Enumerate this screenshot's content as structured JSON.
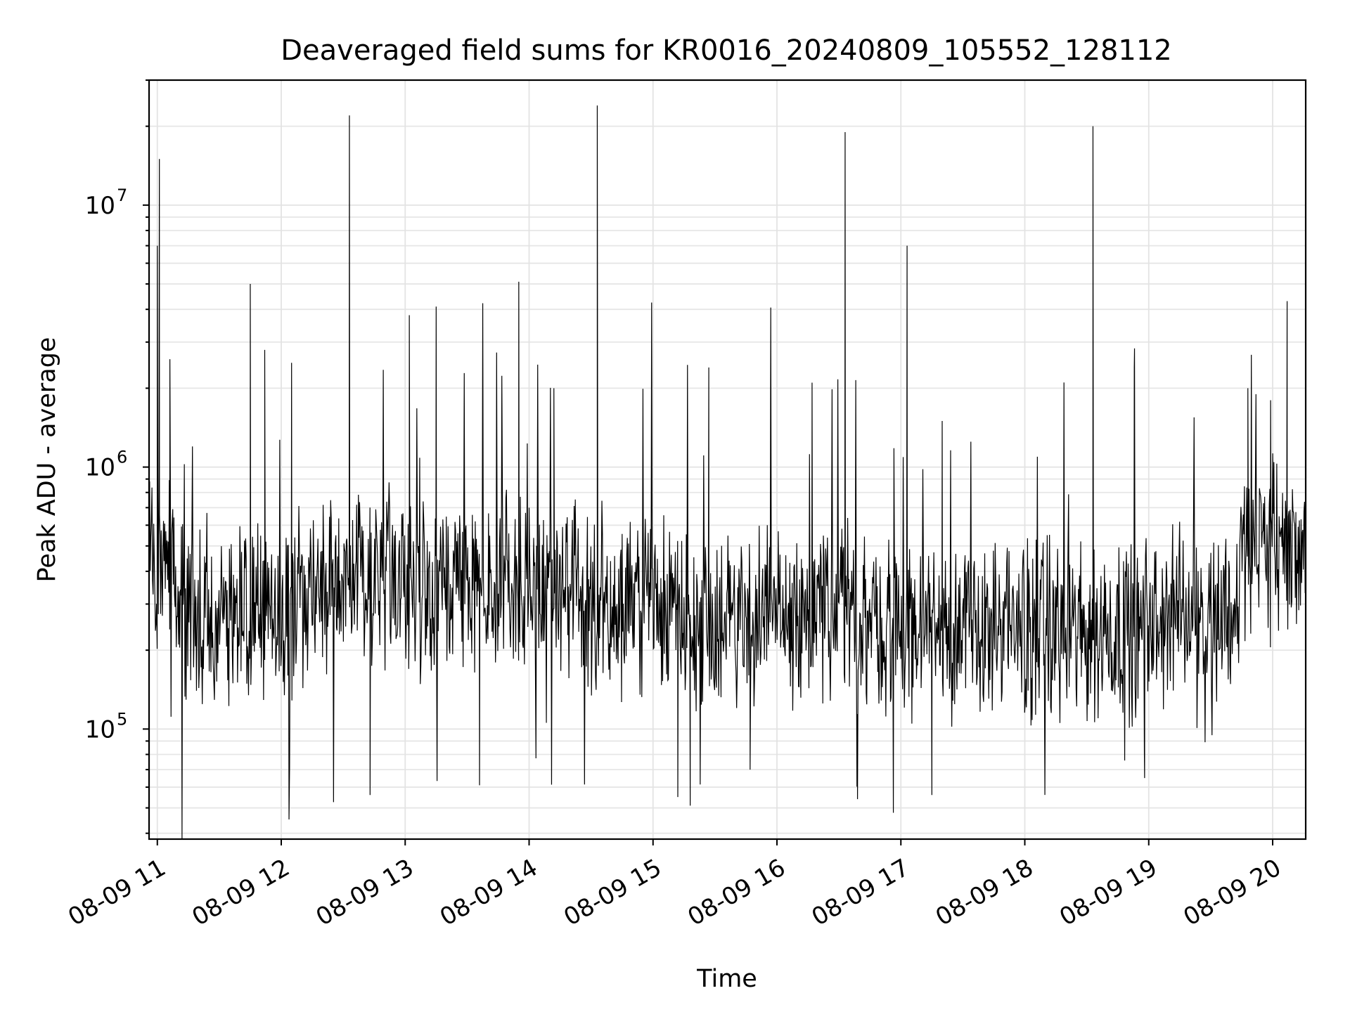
{
  "chart_data": {
    "type": "line",
    "title": "Deaveraged field sums for KR0016_20240809_105552_128112",
    "xlabel": "Time",
    "ylabel": "Peak ADU - average",
    "yscale": "log",
    "ylim": [
      38000,
      30000000
    ],
    "xlim": [
      "2024-08-09 10:56",
      "2024-08-09 20:16"
    ],
    "grid": true,
    "x_ticks": [
      {
        "value": "2024-08-09 11:00",
        "label": "08-09 11"
      },
      {
        "value": "2024-08-09 12:00",
        "label": "08-09 12"
      },
      {
        "value": "2024-08-09 13:00",
        "label": "08-09 13"
      },
      {
        "value": "2024-08-09 14:00",
        "label": "08-09 14"
      },
      {
        "value": "2024-08-09 15:00",
        "label": "08-09 15"
      },
      {
        "value": "2024-08-09 16:00",
        "label": "08-09 16"
      },
      {
        "value": "2024-08-09 17:00",
        "label": "08-09 17"
      },
      {
        "value": "2024-08-09 18:00",
        "label": "08-09 18"
      },
      {
        "value": "2024-08-09 19:00",
        "label": "08-09 19"
      },
      {
        "value": "2024-08-09 20:00",
        "label": "08-09 20"
      }
    ],
    "y_ticks": [
      {
        "value": 100000,
        "base": "10",
        "exp": "5"
      },
      {
        "value": 1000000,
        "base": "10",
        "exp": "6"
      },
      {
        "value": 10000000,
        "base": "10",
        "exp": "7"
      }
    ],
    "series": [
      {
        "color": "#000000",
        "points": [
          [
            "2024-08-09 10:56",
            600000
          ],
          [
            "2024-08-09 11:00",
            7000000
          ],
          [
            "2024-08-09 11:01",
            15000000
          ],
          [
            "2024-08-09 11:06",
            240000
          ],
          [
            "2024-08-09 11:45",
            5000000
          ],
          [
            "2024-08-09 11:52",
            2800000
          ],
          [
            "2024-08-09 12:05",
            2500000
          ],
          [
            "2024-08-09 12:33",
            22000000
          ],
          [
            "2024-08-09 12:43",
            56000
          ],
          [
            "2024-08-09 13:02",
            3800000
          ],
          [
            "2024-08-09 13:15",
            4100000
          ],
          [
            "2024-08-09 13:36",
            61000
          ],
          [
            "2024-08-09 13:55",
            5100000
          ],
          [
            "2024-08-09 14:00",
            700000
          ],
          [
            "2024-08-09 14:12",
            2000000
          ],
          [
            "2024-08-09 14:33",
            24000000
          ],
          [
            "2024-08-09 15:12",
            55000
          ],
          [
            "2024-08-09 15:18",
            51000
          ],
          [
            "2024-08-09 15:27",
            2400000
          ],
          [
            "2024-08-09 15:47",
            70000
          ],
          [
            "2024-08-09 16:17",
            2100000
          ],
          [
            "2024-08-09 16:33",
            19000000
          ],
          [
            "2024-08-09 16:39",
            54000
          ],
          [
            "2024-08-09 17:03",
            7000000
          ],
          [
            "2024-08-09 17:15",
            56000
          ],
          [
            "2024-08-09 17:20",
            1500000
          ],
          [
            "2024-08-09 18:33",
            20000000
          ],
          [
            "2024-08-09 18:53",
            2400000
          ],
          [
            "2024-08-09 18:58",
            65000
          ],
          [
            "2024-08-09 19:48",
            2000000
          ],
          [
            "2024-08-09 19:59",
            1800000
          ],
          [
            "2024-08-09 20:07",
            4300000
          ],
          [
            "2024-08-09 20:16",
            600000
          ]
        ]
      }
    ]
  }
}
